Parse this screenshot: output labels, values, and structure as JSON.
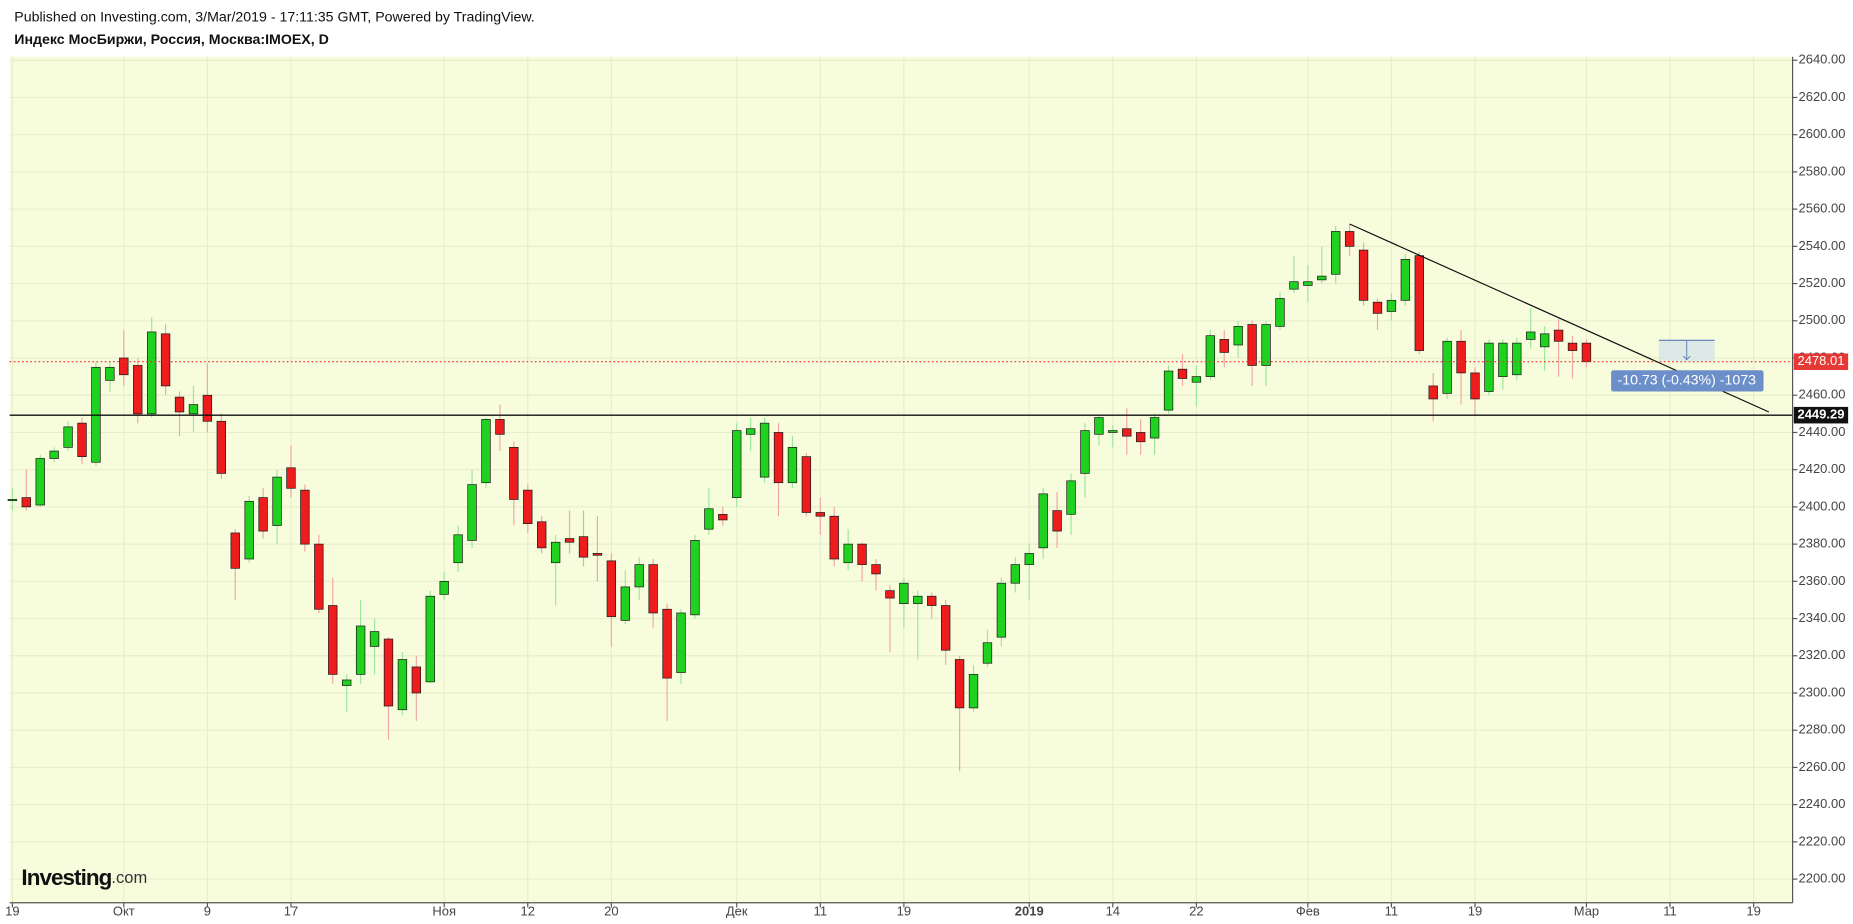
{
  "chart_data": {
    "type": "candlestick",
    "published": "Published on Investing.com, 3/Mar/2019 - 17:11:35 GMT, Powered by TradingView.",
    "title": "Индекс МосБиржи, Россия, Москва:IMOEX, D",
    "logo": "Investing",
    "logo_suffix": ".com",
    "up_color": "#1fd21f",
    "down_color": "#ee1c1c",
    "up_wick_color": "#9be89b",
    "down_wick_color": "#f2a6a6",
    "grid": true,
    "xlim": [
      -0.2,
      127.8
    ],
    "ylim": [
      2187.3,
      2641.9
    ],
    "xticks": [
      {
        "value": 0,
        "label": "19"
      },
      {
        "value": 8,
        "label": "Окт"
      },
      {
        "value": 14,
        "label": "9"
      },
      {
        "value": 20,
        "label": "17"
      },
      {
        "value": 31,
        "label": "Ноя"
      },
      {
        "value": 37,
        "label": "12"
      },
      {
        "value": 43,
        "label": "20"
      },
      {
        "value": 52,
        "label": "Дек"
      },
      {
        "value": 58,
        "label": "11"
      },
      {
        "value": 64,
        "label": "19"
      },
      {
        "value": 73,
        "label": "2019"
      },
      {
        "value": 79,
        "label": "14"
      },
      {
        "value": 85,
        "label": "22"
      },
      {
        "value": 93,
        "label": "Фев"
      },
      {
        "value": 99,
        "label": "11"
      },
      {
        "value": 105,
        "label": "19"
      },
      {
        "value": 113,
        "label": "Мар"
      },
      {
        "value": 119,
        "label": "11"
      },
      {
        "value": 125,
        "label": "19"
      }
    ],
    "yticks": [
      {
        "value": 2200,
        "label": "2200.00"
      },
      {
        "value": 2220,
        "label": "2220.00"
      },
      {
        "value": 2240,
        "label": "2240.00"
      },
      {
        "value": 2260,
        "label": "2260.00"
      },
      {
        "value": 2280,
        "label": "2280.00"
      },
      {
        "value": 2300,
        "label": "2300.00"
      },
      {
        "value": 2320,
        "label": "2320.00"
      },
      {
        "value": 2340,
        "label": "2340.00"
      },
      {
        "value": 2360,
        "label": "2360.00"
      },
      {
        "value": 2380,
        "label": "2380.00"
      },
      {
        "value": 2400,
        "label": "2400.00"
      },
      {
        "value": 2420,
        "label": "2420.00"
      },
      {
        "value": 2440,
        "label": "2440.00"
      },
      {
        "value": 2460,
        "label": "2460.00"
      },
      {
        "value": 2480,
        "label": "2480.00"
      },
      {
        "value": 2500,
        "label": "2500.00"
      },
      {
        "value": 2520,
        "label": "2520.00"
      },
      {
        "value": 2540,
        "label": "2540.00"
      },
      {
        "value": 2560,
        "label": "2560.00"
      },
      {
        "value": 2580,
        "label": "2580.00"
      },
      {
        "value": 2600,
        "label": "2600.00"
      },
      {
        "value": 2620,
        "label": "2620.00"
      },
      {
        "value": 2640,
        "label": "2640.00"
      }
    ],
    "open": [
      2404,
      2405,
      2401,
      2426,
      2432,
      2445,
      2424,
      2468,
      2480,
      2476,
      2450,
      2493,
      2459,
      2450,
      2460,
      2446,
      2386,
      2372,
      2405,
      2390,
      2421,
      2409,
      2380,
      2347,
      2304,
      2310,
      2325,
      2329,
      2291,
      2314,
      2306,
      2353,
      2370,
      2382,
      2413,
      2447,
      2432,
      2409,
      2392,
      2370,
      2383,
      2384,
      2375,
      2371,
      2339,
      2357,
      2369,
      2345,
      2311,
      2342,
      2388,
      2396,
      2405,
      2439,
      2416,
      2440,
      2413,
      2427,
      2397,
      2395,
      2370,
      2380,
      2369,
      2355,
      2348,
      2348,
      2352,
      2347,
      2318,
      2292,
      2316,
      2330,
      2359,
      2369,
      2378,
      2398,
      2396,
      2418,
      2439,
      2440,
      2442,
      2440,
      2437,
      2452,
      2474,
      2467,
      2470,
      2490,
      2487,
      2498,
      2476,
      2497,
      2517,
      2519,
      2522,
      2525,
      2548,
      2538,
      2510,
      2505,
      2511,
      2535,
      2465,
      2461,
      2489,
      2472,
      2462,
      2470,
      2471,
      2490,
      2486,
      2495,
      2488,
      2488
    ],
    "high": [
      2410,
      2420,
      2428,
      2432,
      2446,
      2448,
      2478,
      2478,
      2495,
      2480,
      2502,
      2498,
      2462,
      2465,
      2477,
      2450,
      2388,
      2406,
      2410,
      2420,
      2433,
      2412,
      2385,
      2362,
      2310,
      2350,
      2340,
      2330,
      2322,
      2320,
      2355,
      2365,
      2390,
      2420,
      2448,
      2455,
      2435,
      2412,
      2395,
      2385,
      2398,
      2398,
      2395,
      2375,
      2366,
      2373,
      2372,
      2348,
      2345,
      2385,
      2410,
      2400,
      2445,
      2448,
      2448,
      2445,
      2438,
      2429,
      2405,
      2400,
      2388,
      2381,
      2372,
      2358,
      2362,
      2355,
      2354,
      2350,
      2320,
      2315,
      2334,
      2362,
      2373,
      2380,
      2410,
      2408,
      2418,
      2445,
      2449,
      2444,
      2453,
      2447,
      2450,
      2476,
      2482,
      2476,
      2495,
      2495,
      2500,
      2500,
      2500,
      2515,
      2535,
      2530,
      2540,
      2551,
      2552,
      2542,
      2512,
      2515,
      2536,
      2537,
      2472,
      2491,
      2495,
      2475,
      2490,
      2490,
      2491,
      2507,
      2497,
      2501,
      2492,
      2490
    ],
    "low": [
      2398,
      2398,
      2400,
      2424,
      2430,
      2423,
      2422,
      2462,
      2465,
      2445,
      2448,
      2460,
      2438,
      2440,
      2440,
      2415,
      2350,
      2370,
      2383,
      2380,
      2405,
      2376,
      2343,
      2305,
      2290,
      2305,
      2310,
      2275,
      2288,
      2285,
      2305,
      2350,
      2365,
      2378,
      2410,
      2430,
      2390,
      2386,
      2375,
      2347,
      2375,
      2368,
      2360,
      2325,
      2337,
      2350,
      2335,
      2285,
      2305,
      2340,
      2385,
      2390,
      2400,
      2430,
      2413,
      2395,
      2410,
      2395,
      2385,
      2368,
      2366,
      2360,
      2355,
      2322,
      2335,
      2318,
      2340,
      2315,
      2258,
      2290,
      2314,
      2325,
      2354,
      2350,
      2372,
      2378,
      2385,
      2405,
      2433,
      2432,
      2428,
      2428,
      2428,
      2450,
      2465,
      2454,
      2468,
      2475,
      2480,
      2465,
      2465,
      2495,
      2515,
      2510,
      2520,
      2520,
      2535,
      2508,
      2495,
      2500,
      2508,
      2482,
      2446,
      2458,
      2455,
      2449,
      2460,
      2463,
      2468,
      2485,
      2473,
      2470,
      2469,
      2475
    ],
    "close": [
      2404,
      2400,
      2426,
      2430,
      2443,
      2427,
      2475,
      2475,
      2471,
      2450,
      2494,
      2465,
      2451,
      2455,
      2446,
      2418,
      2367,
      2403,
      2387,
      2416,
      2410,
      2380,
      2345,
      2310,
      2307,
      2336,
      2333,
      2293,
      2318,
      2300,
      2352,
      2360,
      2385,
      2412,
      2447,
      2439,
      2404,
      2391,
      2378,
      2381,
      2381,
      2373,
      2374,
      2341,
      2357,
      2369,
      2343,
      2308,
      2343,
      2382,
      2399,
      2393,
      2441,
      2442,
      2445,
      2413,
      2432,
      2397,
      2395,
      2372,
      2380,
      2369,
      2364,
      2351,
      2359,
      2352,
      2347,
      2323,
      2292,
      2310,
      2327,
      2359,
      2369,
      2375,
      2407,
      2387,
      2414,
      2441,
      2448,
      2441,
      2438,
      2435,
      2448,
      2473,
      2469,
      2470,
      2492,
      2483,
      2497,
      2476,
      2498,
      2512,
      2521,
      2521,
      2524,
      2548,
      2540,
      2511,
      2504,
      2511,
      2533,
      2484,
      2458,
      2489,
      2472,
      2458,
      2488,
      2488,
      2488,
      2494,
      2493,
      2489,
      2484,
      2478.01
    ],
    "hline": 2449.29,
    "trendline": {
      "x": [
        96,
        126.1
      ],
      "y": [
        2552,
        2451
      ]
    },
    "measure": {
      "x": [
        118.2,
        122.2
      ],
      "y": [
        2489.5,
        2478.5
      ],
      "label": "-10.73 (-0.43%) -1073"
    }
  }
}
